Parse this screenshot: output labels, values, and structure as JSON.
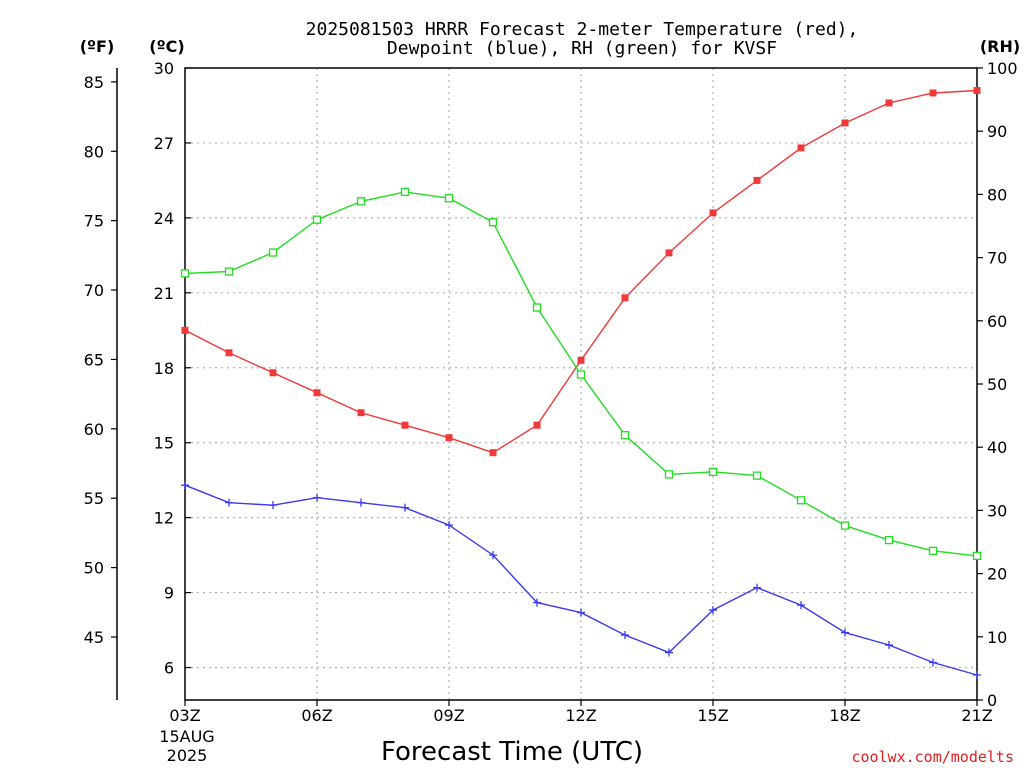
{
  "chart_data": {
    "type": "line",
    "title_line1": "2025081503 HRRR Forecast 2-meter Temperature (red),",
    "title_line2": "Dewpoint (blue), RH (green) for KVSF",
    "xlabel": "Forecast Time (UTC)",
    "credit": "coolwx.com/modelts",
    "unit_labels": {
      "fahrenheit": "(ºF)",
      "celsius": "(ºC)",
      "rh": "(RH)"
    },
    "x_hours": [
      3,
      4,
      5,
      6,
      7,
      8,
      9,
      10,
      11,
      12,
      13,
      14,
      15,
      16,
      17,
      18,
      19,
      20,
      21
    ],
    "x_ticks": [
      {
        "hour": 3,
        "label": "03Z"
      },
      {
        "hour": 6,
        "label": "06Z"
      },
      {
        "hour": 9,
        "label": "09Z"
      },
      {
        "hour": 12,
        "label": "12Z"
      },
      {
        "hour": 15,
        "label": "15Z"
      },
      {
        "hour": 18,
        "label": "18Z"
      },
      {
        "hour": 21,
        "label": "21Z"
      }
    ],
    "date_label_line1": "15AUG",
    "date_label_line2": "2025",
    "xlim": [
      3,
      21
    ],
    "ylim_c": [
      4.7,
      30
    ],
    "ylim_rh": [
      0,
      100
    ],
    "y_ticks_c": [
      6,
      9,
      12,
      15,
      18,
      21,
      24,
      27,
      30
    ],
    "y_ticks_f": [
      45,
      50,
      55,
      60,
      65,
      70,
      75,
      80,
      85
    ],
    "y_ticks_rh": [
      0,
      10,
      20,
      30,
      40,
      50,
      60,
      70,
      80,
      90,
      100
    ],
    "grid": true,
    "series": [
      {
        "name": "2-meter Temperature (red)",
        "axis": "celsius",
        "color": "#f03a3a",
        "marker": "filled-square",
        "values": [
          19.5,
          18.6,
          17.8,
          17.0,
          16.2,
          15.7,
          15.2,
          14.6,
          15.7,
          18.3,
          20.8,
          22.6,
          24.2,
          25.5,
          26.8,
          27.8,
          28.6,
          29.0,
          29.1
        ]
      },
      {
        "name": "Dewpoint (blue)",
        "axis": "celsius",
        "color": "#3a3af0",
        "marker": "plus",
        "values": [
          13.3,
          12.6,
          12.5,
          12.8,
          12.6,
          12.4,
          11.7,
          10.5,
          8.6,
          8.2,
          7.3,
          6.6,
          8.3,
          9.2,
          8.5,
          7.4,
          6.9,
          6.2,
          5.7
        ]
      },
      {
        "name": "RH (green)",
        "axis": "rh",
        "color": "#22dd22",
        "marker": "open-square",
        "values": [
          67.5,
          67.8,
          70.8,
          76.0,
          78.9,
          80.4,
          79.4,
          75.6,
          62.1,
          51.5,
          41.9,
          35.7,
          36.1,
          35.5,
          31.6,
          27.6,
          25.3,
          23.6,
          22.8
        ]
      }
    ]
  }
}
